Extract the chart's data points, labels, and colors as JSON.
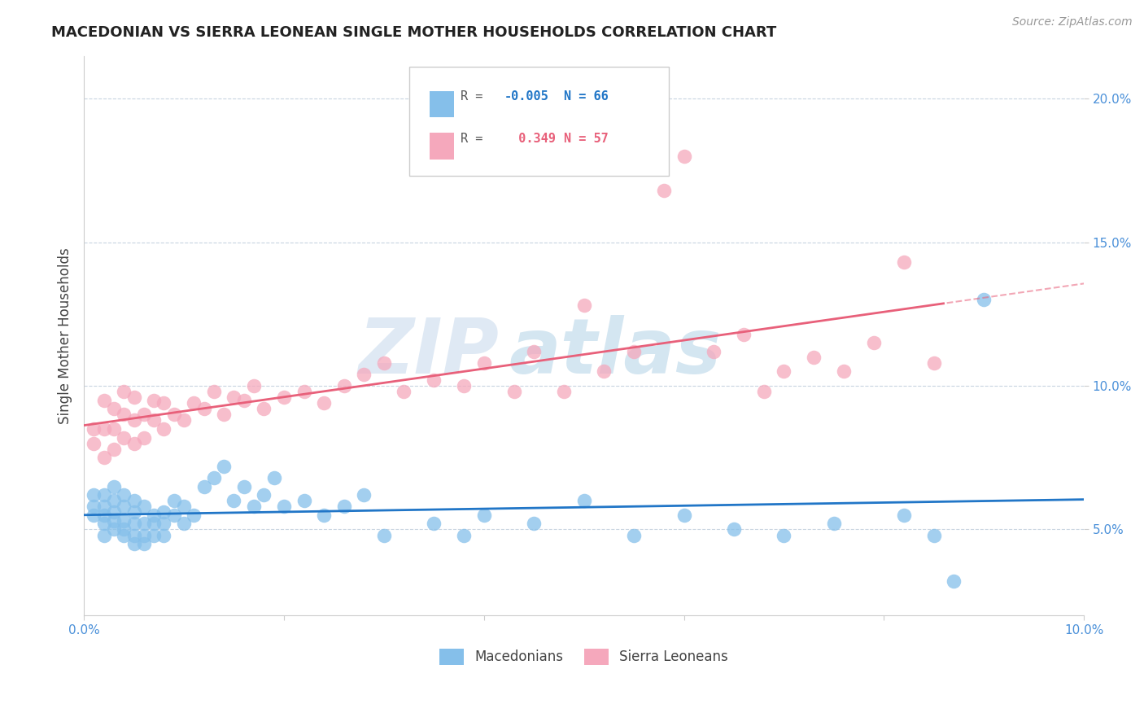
{
  "title": "MACEDONIAN VS SIERRA LEONEAN SINGLE MOTHER HOUSEHOLDS CORRELATION CHART",
  "source": "Source: ZipAtlas.com",
  "ylabel": "Single Mother Households",
  "xlabel": "",
  "xlim": [
    0.0,
    0.1
  ],
  "ylim": [
    0.02,
    0.215
  ],
  "xticks": [
    0.0,
    0.02,
    0.04,
    0.06,
    0.08,
    0.1
  ],
  "xtick_labels": [
    "0.0%",
    "",
    "",
    "",
    "",
    "10.0%"
  ],
  "yticks": [
    0.05,
    0.1,
    0.15,
    0.2
  ],
  "ytick_labels": [
    "5.0%",
    "10.0%",
    "15.0%",
    "20.0%"
  ],
  "macedonian_color": "#85bfea",
  "sierra_leonean_color": "#f5a8bc",
  "macedonian_line_color": "#2176c7",
  "sierra_leonean_line_color": "#e8607a",
  "axis_color": "#4a90d9",
  "grid_color": "#c8d4e0",
  "title_color": "#222222",
  "source_color": "#999999",
  "legend_text_mac": "R = -0.005   N = 66",
  "legend_text_sl": "R =   0.349   N = 57",
  "watermark_zip": "ZIP",
  "watermark_atlas": "atlas",
  "macedonian_x": [
    0.001,
    0.001,
    0.001,
    0.002,
    0.002,
    0.002,
    0.002,
    0.002,
    0.003,
    0.003,
    0.003,
    0.003,
    0.003,
    0.004,
    0.004,
    0.004,
    0.004,
    0.004,
    0.005,
    0.005,
    0.005,
    0.005,
    0.005,
    0.006,
    0.006,
    0.006,
    0.006,
    0.007,
    0.007,
    0.007,
    0.008,
    0.008,
    0.008,
    0.009,
    0.009,
    0.01,
    0.01,
    0.011,
    0.012,
    0.013,
    0.014,
    0.015,
    0.016,
    0.017,
    0.018,
    0.019,
    0.02,
    0.022,
    0.024,
    0.026,
    0.028,
    0.03,
    0.035,
    0.038,
    0.04,
    0.045,
    0.05,
    0.055,
    0.06,
    0.065,
    0.07,
    0.075,
    0.082,
    0.085,
    0.087,
    0.09
  ],
  "macedonian_y": [
    0.055,
    0.058,
    0.062,
    0.048,
    0.052,
    0.055,
    0.058,
    0.062,
    0.05,
    0.053,
    0.056,
    0.06,
    0.065,
    0.048,
    0.05,
    0.053,
    0.058,
    0.062,
    0.045,
    0.048,
    0.052,
    0.056,
    0.06,
    0.045,
    0.048,
    0.052,
    0.058,
    0.048,
    0.052,
    0.055,
    0.048,
    0.052,
    0.056,
    0.055,
    0.06,
    0.052,
    0.058,
    0.055,
    0.065,
    0.068,
    0.072,
    0.06,
    0.065,
    0.058,
    0.062,
    0.068,
    0.058,
    0.06,
    0.055,
    0.058,
    0.062,
    0.048,
    0.052,
    0.048,
    0.055,
    0.052,
    0.06,
    0.048,
    0.055,
    0.05,
    0.048,
    0.052,
    0.055,
    0.048,
    0.032,
    0.13
  ],
  "sierra_leonean_x": [
    0.001,
    0.001,
    0.002,
    0.002,
    0.002,
    0.003,
    0.003,
    0.003,
    0.004,
    0.004,
    0.004,
    0.005,
    0.005,
    0.005,
    0.006,
    0.006,
    0.007,
    0.007,
    0.008,
    0.008,
    0.009,
    0.01,
    0.011,
    0.012,
    0.013,
    0.014,
    0.015,
    0.016,
    0.017,
    0.018,
    0.02,
    0.022,
    0.024,
    0.026,
    0.028,
    0.03,
    0.032,
    0.035,
    0.038,
    0.04,
    0.043,
    0.045,
    0.048,
    0.05,
    0.052,
    0.055,
    0.058,
    0.06,
    0.063,
    0.066,
    0.068,
    0.07,
    0.073,
    0.076,
    0.079,
    0.082,
    0.085
  ],
  "sierra_leonean_y": [
    0.08,
    0.085,
    0.075,
    0.085,
    0.095,
    0.078,
    0.085,
    0.092,
    0.082,
    0.09,
    0.098,
    0.08,
    0.088,
    0.096,
    0.082,
    0.09,
    0.088,
    0.095,
    0.085,
    0.094,
    0.09,
    0.088,
    0.094,
    0.092,
    0.098,
    0.09,
    0.096,
    0.095,
    0.1,
    0.092,
    0.096,
    0.098,
    0.094,
    0.1,
    0.104,
    0.108,
    0.098,
    0.102,
    0.1,
    0.108,
    0.098,
    0.112,
    0.098,
    0.128,
    0.105,
    0.112,
    0.168,
    0.18,
    0.112,
    0.118,
    0.098,
    0.105,
    0.11,
    0.105,
    0.115,
    0.143,
    0.108
  ]
}
